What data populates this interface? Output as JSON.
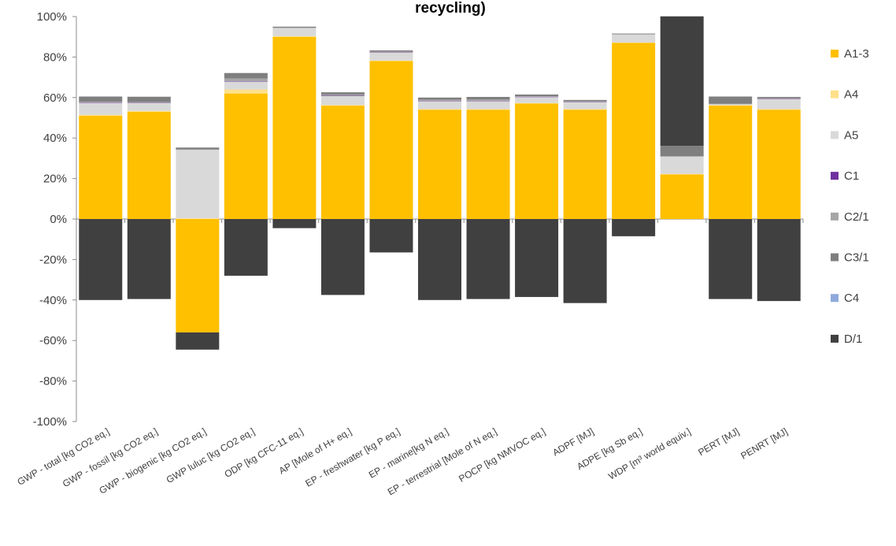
{
  "chart_data": {
    "type": "bar",
    "stacked": true,
    "title": "recycling)",
    "xlabel": "",
    "ylabel": "",
    "ylim": [
      -100,
      100
    ],
    "yticks": [
      -100,
      -80,
      -60,
      -40,
      -20,
      0,
      20,
      40,
      60,
      80,
      100
    ],
    "ytick_labels": [
      "-100%",
      "-80%",
      "-60%",
      "-40%",
      "-20%",
      "0%",
      "20%",
      "40%",
      "60%",
      "80%",
      "100%"
    ],
    "grid": false,
    "legend_position": "right",
    "categories": [
      "GWP - total [kg CO2 eq.]",
      "GWP - fossil [kg CO2 eq.]",
      "GWP - biogenic [kg CO2 eq.]",
      "GWP luluc [kg CO2 eq.]",
      "ODP [kg CFC-11 eq.]",
      "AP [Mole of H+ eq.]",
      "EP - freshwater [kg P eq.]",
      "EP - marine[kg N eq.]",
      "EP - terrestrial [Mole of N eq.]",
      "POCP [kg NMVOC eq.]",
      "ADPF [MJ]",
      "ADPE [kg Sb eq.]",
      "WDP [m³ world equiv.]",
      "PERT [MJ]",
      "PENRT [MJ]"
    ],
    "series": [
      {
        "name": "A1-3",
        "color": "#FFC000",
        "values": [
          51,
          53,
          -56,
          62,
          90,
          56,
          78,
          54,
          54,
          57,
          54,
          87,
          22,
          56,
          54
        ]
      },
      {
        "name": "A4",
        "color": "#FFE08A",
        "values": [
          0.5,
          0.4,
          0.3,
          2,
          0.3,
          0.3,
          0.3,
          0.3,
          0.3,
          0.3,
          0.3,
          0.2,
          0.3,
          0.3,
          0.3
        ]
      },
      {
        "name": "A5",
        "color": "#D9D9D9",
        "values": [
          6,
          4,
          34,
          4,
          4,
          4.5,
          4,
          4,
          4,
          3,
          3.5,
          4,
          8.5,
          0.5,
          5
        ]
      },
      {
        "name": "C1",
        "color": "#7030A0",
        "values": [
          0.1,
          0.1,
          0,
          0.1,
          0,
          0.1,
          0.1,
          0.1,
          0.1,
          0.1,
          0.1,
          0,
          0,
          0,
          0.1
        ]
      },
      {
        "name": "C2/1",
        "color": "#A6A6A6",
        "values": [
          0.3,
          0.3,
          0.1,
          1.3,
          0.2,
          0.6,
          0.3,
          0.5,
          0.6,
          0.3,
          0.3,
          0.1,
          0.2,
          0.1,
          0.3
        ]
      },
      {
        "name": "C3/1",
        "color": "#7F7F7F",
        "values": [
          2.6,
          2.6,
          0.9,
          2.7,
          0.5,
          1.1,
          0.6,
          1.1,
          1.3,
          0.8,
          0.6,
          0.3,
          5.1,
          3.6,
          0.6
        ]
      },
      {
        "name": "C4",
        "color": "#8EA9DB",
        "values": [
          0,
          0,
          0,
          0,
          0,
          0,
          0,
          0,
          0,
          0,
          0,
          0,
          0,
          0,
          0
        ]
      },
      {
        "name": "D/1",
        "color": "#404040",
        "values": [
          -40,
          -39.5,
          -8.5,
          -28,
          -4.5,
          -37.5,
          -16.5,
          -40,
          -39.5,
          -38.5,
          -41.5,
          -8.5,
          64,
          -39.5,
          -40.5
        ]
      }
    ]
  }
}
